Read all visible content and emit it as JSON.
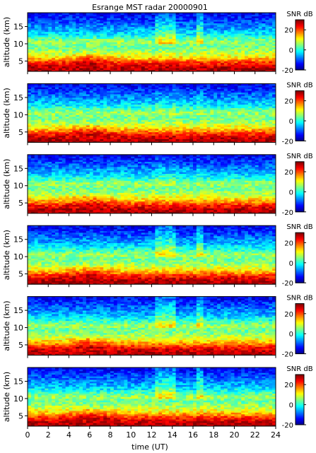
{
  "chart_data": {
    "type": "heatmap",
    "title": "Esrange MST radar 20000901",
    "xlabel": "time (UT)",
    "ylabel": "altitude (km)",
    "xlim": [
      0,
      24
    ],
    "ylim": [
      2,
      19
    ],
    "x_ticks": [
      0,
      2,
      4,
      6,
      8,
      10,
      12,
      14,
      16,
      18,
      20,
      22,
      24
    ],
    "y_ticks": [
      5,
      10,
      15
    ],
    "colorbar": {
      "label": "SNR dB",
      "range": [
        -20,
        30
      ],
      "ticks": [
        -20,
        0,
        20
      ],
      "colormap": "jet"
    },
    "snr_profile_db": {
      "altitude_km": [
        2.5,
        3.5,
        4.5,
        5.5,
        6.5,
        7.5,
        8.5,
        9.5,
        10.5,
        11.5,
        12.5,
        13.5,
        14.5,
        15.5,
        16.5,
        17.5,
        18.5
      ],
      "snr_db": [
        28,
        26,
        22,
        16,
        11,
        8,
        5,
        4,
        7,
        3,
        -1,
        -4,
        -6,
        -8,
        -10,
        -12,
        -14
      ]
    },
    "panels": [
      {
        "panel": 1,
        "description": "strong echoes below 5 km, weaker layers to 18 km"
      },
      {
        "panel": 2,
        "description": "strong echoes below 5 km, weaker layers to 18 km"
      },
      {
        "panel": 3,
        "description": "strong echoes below 5 km, weaker layers to 18 km"
      },
      {
        "panel": 4,
        "description": "strong echoes below 5 km, weaker layers to 18 km"
      },
      {
        "panel": 5,
        "description": "strong echoes below 5 km, weaker layers to 18 km"
      },
      {
        "panel": 6,
        "description": "strong echoes below 5 km, weaker layers to 18 km"
      }
    ]
  }
}
